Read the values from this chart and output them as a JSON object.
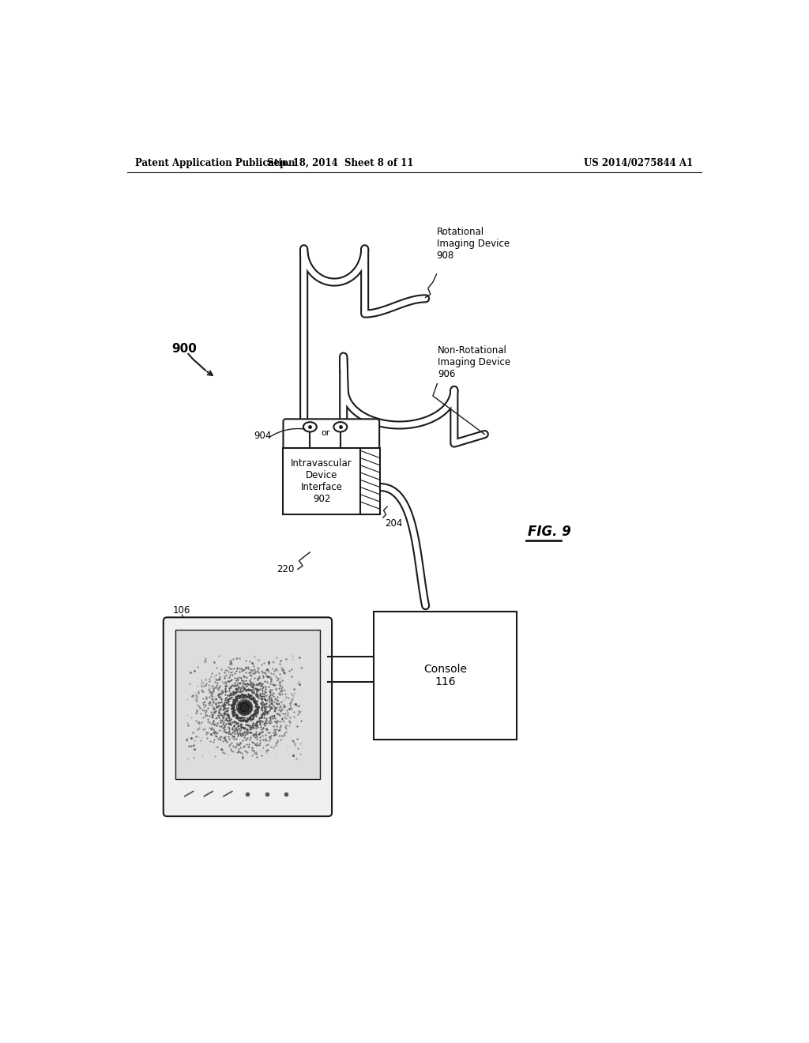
{
  "bg_color": "#ffffff",
  "header_left": "Patent Application Publication",
  "header_mid": "Sep. 18, 2014  Sheet 8 of 11",
  "header_right": "US 2014/0275844 A1",
  "fig_label": "FIG. 9",
  "label_900": "900",
  "label_902": "902",
  "label_904": "904",
  "label_106": "106",
  "label_116": "Console\n116",
  "label_204": "204",
  "label_220": "220",
  "label_906": "Non-Rotational\nImaging Device\n906",
  "label_908": "Rotational\nImaging Device\n908",
  "box_interface_text": "Intravascular\nDevice\nInterface\n902"
}
